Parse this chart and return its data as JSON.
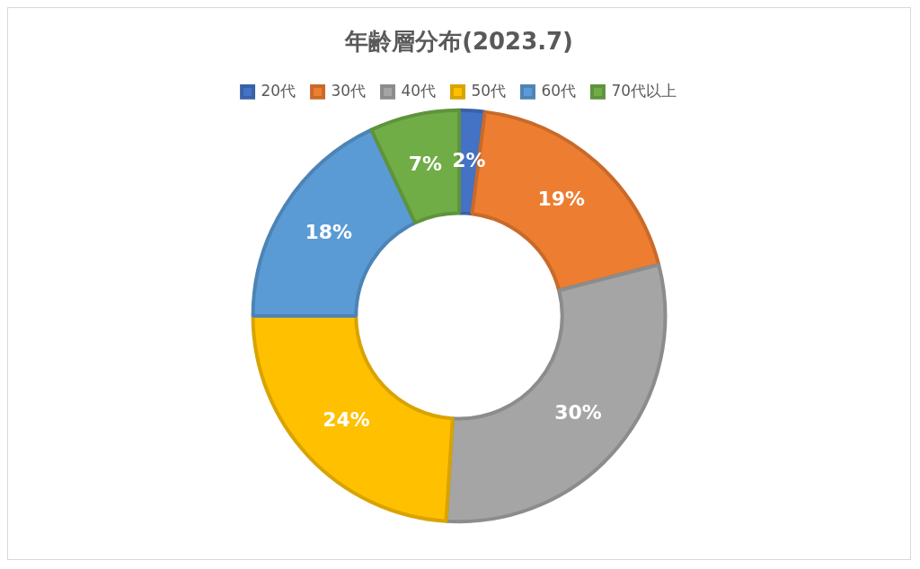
{
  "chart_data": {
    "type": "donut",
    "title": "年齢層分布(2023.7)",
    "categories": [
      "20代",
      "30代",
      "40代",
      "50代",
      "60代",
      "70代以上"
    ],
    "values": [
      2,
      19,
      30,
      24,
      18,
      7
    ],
    "value_labels": [
      "2%",
      "19%",
      "30%",
      "24%",
      "18%",
      "7%"
    ],
    "colors": [
      "#4472c4",
      "#ed7d31",
      "#a5a5a5",
      "#ffc000",
      "#5b9bd5",
      "#70ad47"
    ],
    "legend": "top"
  }
}
